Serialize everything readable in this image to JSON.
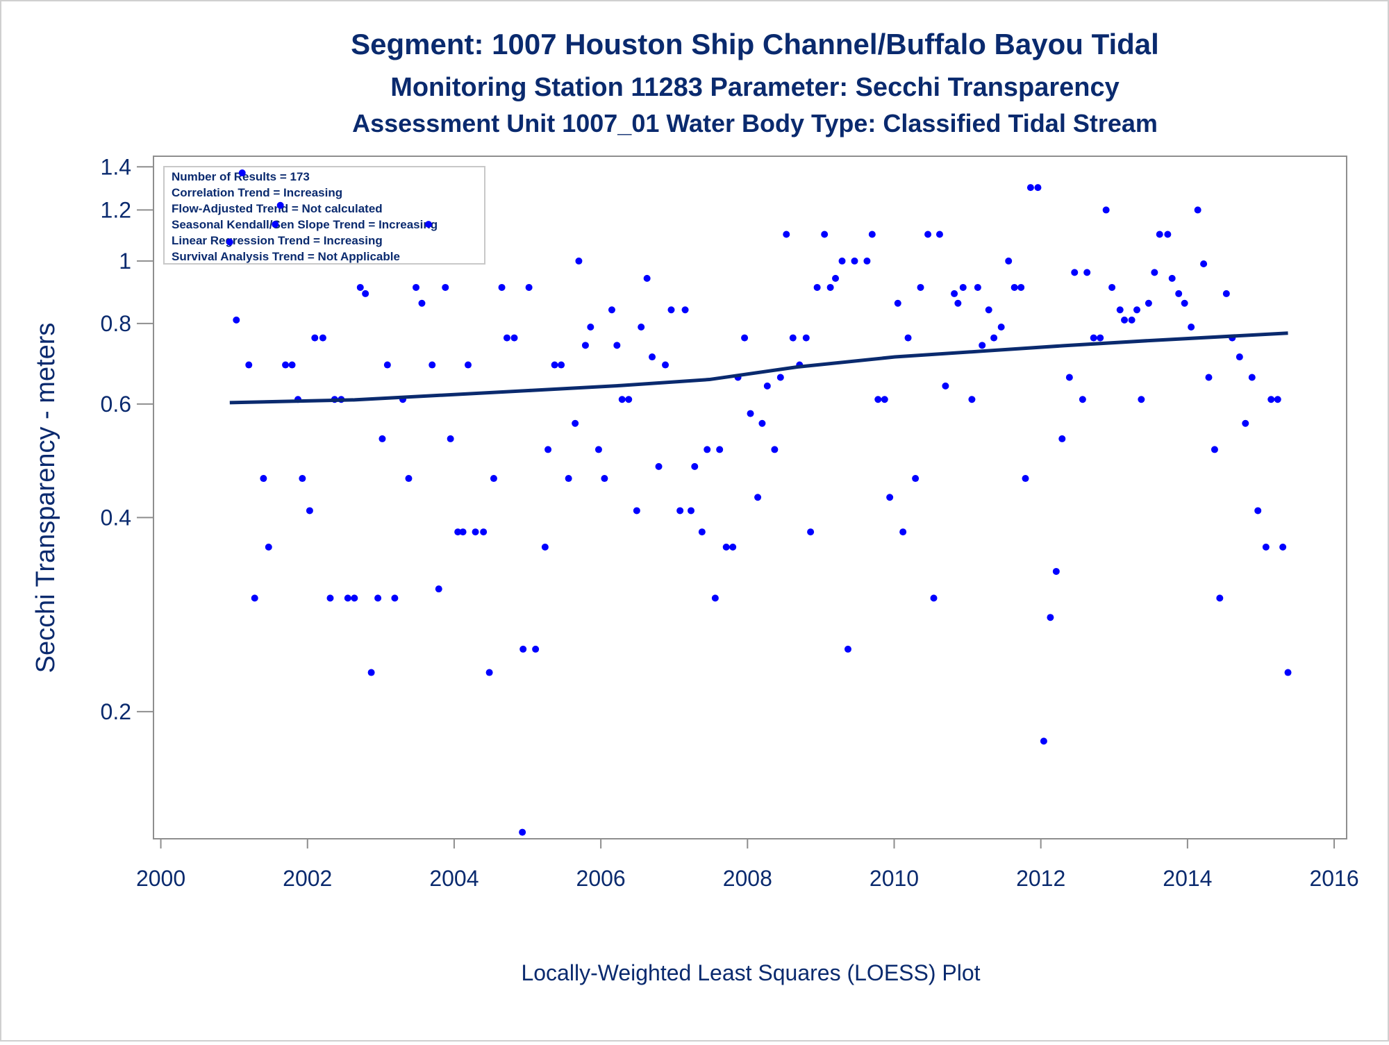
{
  "chart_data": {
    "type": "scatter",
    "title": "Segment: 1007  Houston Ship Channel/Buffalo Bayou Tidal",
    "subtitles": [
      "Monitoring Station 11283 Parameter: Secchi Transparency",
      "Assessment Unit 1007_01   Water Body Type: Classified Tidal Stream"
    ],
    "annotations": [
      "Number of Results = 173",
      "Correlation Trend = Increasing",
      "Flow-Adjusted Trend = Not calculated",
      "Seasonal Kendall/Sen Slope Trend = Increasing",
      "Linear Regression Trend = Increasing",
      "Survival Analysis Trend = Not Applicable"
    ],
    "ylabel": "Secchi Transparency - meters",
    "footnote": "Locally-Weighted Least Squares (LOESS) Plot",
    "xlim": [
      1999.9,
      2016.17
    ],
    "xticks": [
      2000,
      2002,
      2004,
      2006,
      2008,
      2010,
      2012,
      2014,
      2016
    ],
    "ylim": [
      0.127,
      1.454
    ],
    "yticks": [
      0.2,
      0.4,
      0.6,
      0.8,
      1,
      1.2,
      1.4
    ],
    "log_y": true,
    "series": [
      {
        "type": "scatter",
        "color": "#0000ff",
        "x": [
          2000.94,
          2001.03,
          2001.11,
          2001.2,
          2001.28,
          2001.4,
          2001.47,
          2001.56,
          2001.63,
          2001.7,
          2001.79,
          2001.87,
          2001.93,
          2002.03,
          2002.1,
          2002.21,
          2002.31,
          2002.37,
          2002.46,
          2002.55,
          2002.64,
          2002.72,
          2002.79,
          2002.87,
          2002.96,
          2003.02,
          2003.09,
          2003.19,
          2003.3,
          2003.38,
          2003.48,
          2003.56,
          2003.65,
          2003.7,
          2003.79,
          2003.88,
          2003.95,
          2004.05,
          2004.12,
          2004.19,
          2004.29,
          2004.4,
          2004.48,
          2004.54,
          2004.65,
          2004.72,
          2004.82,
          2004.93,
          2004.94,
          2005.02,
          2005.11,
          2005.24,
          2005.28,
          2005.37,
          2005.46,
          2005.56,
          2005.65,
          2005.7,
          2005.79,
          2005.86,
          2005.97,
          2006.05,
          2006.15,
          2006.22,
          2006.29,
          2006.38,
          2006.49,
          2006.55,
          2006.63,
          2006.7,
          2006.79,
          2006.88,
          2006.96,
          2007.08,
          2007.15,
          2007.23,
          2007.28,
          2007.38,
          2007.45,
          2007.56,
          2007.62,
          2007.71,
          2007.8,
          2007.87,
          2007.96,
          2008.04,
          2008.14,
          2008.2,
          2008.27,
          2008.37,
          2008.45,
          2008.53,
          2008.62,
          2008.71,
          2008.8,
          2008.86,
          2008.95,
          2009.05,
          2009.13,
          2009.2,
          2009.29,
          2009.37,
          2009.46,
          2009.63,
          2009.7,
          2009.78,
          2009.87,
          2009.94,
          2010.05,
          2010.12,
          2010.19,
          2010.29,
          2010.36,
          2010.46,
          2010.54,
          2010.62,
          2010.7,
          2010.82,
          2010.87,
          2010.94,
          2011.06,
          2011.14,
          2011.2,
          2011.29,
          2011.36,
          2011.46,
          2011.56,
          2011.64,
          2011.73,
          2011.79,
          2011.86,
          2011.96,
          2012.04,
          2012.13,
          2012.21,
          2012.29,
          2012.39,
          2012.46,
          2012.57,
          2012.63,
          2012.72,
          2012.81,
          2012.89,
          2012.97,
          2013.08,
          2013.14,
          2013.24,
          2013.31,
          2013.37,
          2013.47,
          2013.55,
          2013.62,
          2013.73,
          2013.79,
          2013.88,
          2013.96,
          2014.05,
          2014.14,
          2014.22,
          2014.29,
          2014.37,
          2014.44,
          2014.53,
          2014.61,
          2014.71,
          2014.79,
          2014.88,
          2014.96,
          2015.07,
          2015.14,
          2015.23,
          2015.3,
          2015.37
        ],
        "values": [
          1.07,
          0.81,
          1.37,
          0.69,
          0.3,
          0.46,
          0.36,
          1.14,
          1.22,
          0.69,
          0.69,
          0.61,
          0.46,
          0.41,
          0.76,
          0.76,
          0.3,
          0.61,
          0.61,
          0.3,
          0.3,
          0.91,
          0.89,
          0.23,
          0.3,
          0.53,
          0.69,
          0.3,
          0.61,
          0.46,
          0.91,
          0.86,
          1.14,
          0.69,
          0.31,
          0.91,
          0.53,
          0.38,
          0.38,
          0.69,
          0.38,
          0.38,
          0.23,
          0.46,
          0.91,
          0.76,
          0.76,
          0.13,
          0.25,
          0.91,
          0.25,
          0.36,
          0.51,
          0.69,
          0.69,
          0.46,
          0.56,
          1,
          0.74,
          0.79,
          0.51,
          0.46,
          0.84,
          0.74,
          0.61,
          0.61,
          0.41,
          0.79,
          0.94,
          0.71,
          0.48,
          0.69,
          0.84,
          0.41,
          0.84,
          0.41,
          0.48,
          0.38,
          0.51,
          0.3,
          0.51,
          0.36,
          0.36,
          0.66,
          0.76,
          0.58,
          0.43,
          0.56,
          0.64,
          0.51,
          0.66,
          1.1,
          0.76,
          0.69,
          0.76,
          0.38,
          0.91,
          1.1,
          0.91,
          0.94,
          1,
          0.25,
          1,
          1,
          1.1,
          0.61,
          0.61,
          0.43,
          0.86,
          0.38,
          0.76,
          0.46,
          0.91,
          1.1,
          0.3,
          1.1,
          0.64,
          0.89,
          0.86,
          0.91,
          0.61,
          0.91,
          0.74,
          0.84,
          0.76,
          0.79,
          1,
          0.91,
          0.91,
          0.46,
          1.3,
          1.3,
          0.18,
          0.28,
          0.33,
          0.53,
          0.66,
          0.96,
          0.61,
          0.96,
          0.76,
          0.76,
          1.2,
          0.91,
          0.84,
          0.81,
          0.81,
          0.84,
          0.61,
          0.86,
          0.96,
          1.1,
          1.1,
          0.94,
          0.89,
          0.86,
          0.79,
          1.2,
          0.99,
          0.66,
          0.51,
          0.3,
          0.89,
          0.76,
          0.71,
          0.56,
          0.66,
          0.41,
          0.36,
          0.61,
          0.61,
          0.36,
          0.23
        ]
      },
      {
        "type": "line",
        "color": "#0a2a6e",
        "x": [
          2000.94,
          2002.64,
          2005.06,
          2006.27,
          2007.48,
          2008.68,
          2010.01,
          2012.31,
          2013.51,
          2015.37
        ],
        "values": [
          0.603,
          0.609,
          0.63,
          0.641,
          0.655,
          0.685,
          0.71,
          0.739,
          0.753,
          0.773
        ]
      }
    ]
  }
}
